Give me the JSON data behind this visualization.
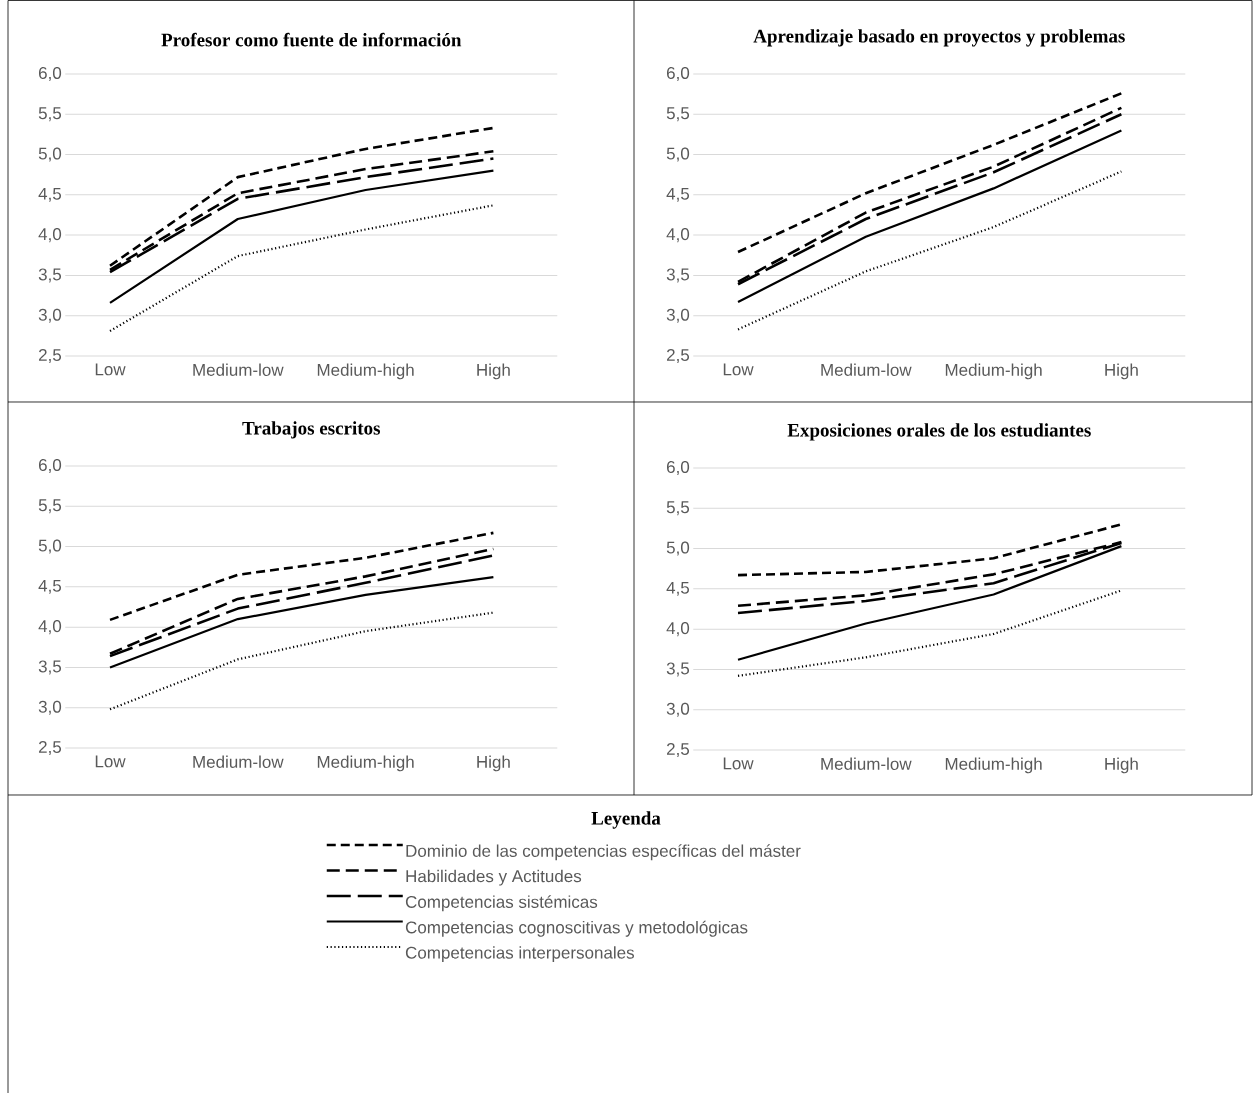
{
  "chart_data": [
    {
      "type": "line",
      "title": "Profesor como fuente de información",
      "categories": [
        "Low",
        "Medium-low",
        "Medium-high",
        "High"
      ],
      "ylim": [
        2.5,
        6.0
      ],
      "yticks": [
        {
          "value": 2.5,
          "label": "2,5"
        },
        {
          "value": 3.0,
          "label": "3,0"
        },
        {
          "value": 3.5,
          "label": "3,5"
        },
        {
          "value": 4.0,
          "label": "4,0"
        },
        {
          "value": 4.5,
          "label": "4,5"
        },
        {
          "value": 5.0,
          "label": "5,0"
        },
        {
          "value": 5.5,
          "label": "5,5"
        },
        {
          "value": 6.0,
          "label": "6,0"
        }
      ],
      "grid": "y",
      "series": [
        {
          "color": "#000000",
          "line_style": "dashed",
          "values": [
            3.62,
            4.72,
            5.07,
            5.33
          ]
        },
        {
          "color": "#000000",
          "line_style": "dashed",
          "values": [
            3.57,
            4.52,
            4.82,
            5.04
          ]
        },
        {
          "color": "#000000",
          "line_style": "dashed",
          "values": [
            3.54,
            4.45,
            4.72,
            4.95
          ]
        },
        {
          "color": "#000000",
          "line_style": "solid",
          "values": [
            3.16,
            4.2,
            4.56,
            4.8
          ]
        },
        {
          "color": "#000000",
          "line_style": "dotted",
          "values": [
            2.81,
            3.74,
            4.07,
            4.37
          ]
        }
      ]
    },
    {
      "type": "line",
      "title": "Aprendizaje basado en proyectos y problemas",
      "categories": [
        "Low",
        "Medium-low",
        "Medium-high",
        "High"
      ],
      "ylim": [
        2.5,
        6.0
      ],
      "yticks": [
        {
          "value": 2.5,
          "label": "2,5"
        },
        {
          "value": 3.0,
          "label": "3,0"
        },
        {
          "value": 3.5,
          "label": "3,5"
        },
        {
          "value": 4.0,
          "label": "4,0"
        },
        {
          "value": 4.5,
          "label": "4,5"
        },
        {
          "value": 5.0,
          "label": "5,0"
        },
        {
          "value": 5.5,
          "label": "5,5"
        },
        {
          "value": 6.0,
          "label": "6,0"
        }
      ],
      "grid": "y",
      "series": [
        {
          "color": "#000000",
          "line_style": "dashed",
          "values": [
            3.79,
            4.52,
            5.12,
            5.76
          ]
        },
        {
          "color": "#000000",
          "line_style": "dashed",
          "values": [
            3.42,
            4.28,
            4.85,
            5.58
          ]
        },
        {
          "color": "#000000",
          "line_style": "dashed",
          "values": [
            3.39,
            4.2,
            4.78,
            5.5
          ]
        },
        {
          "color": "#000000",
          "line_style": "solid",
          "values": [
            3.17,
            3.98,
            4.58,
            5.3
          ]
        },
        {
          "color": "#000000",
          "line_style": "dotted",
          "values": [
            2.83,
            3.55,
            4.1,
            4.79
          ]
        }
      ]
    },
    {
      "type": "line",
      "title": "Trabajos escritos",
      "categories": [
        "Low",
        "Medium-low",
        "Medium-high",
        "High"
      ],
      "ylim": [
        2.5,
        6.0
      ],
      "yticks": [
        {
          "value": 2.5,
          "label": "2,5"
        },
        {
          "value": 3.0,
          "label": "3,0"
        },
        {
          "value": 3.5,
          "label": "3,5"
        },
        {
          "value": 4.0,
          "label": "4,0"
        },
        {
          "value": 4.5,
          "label": "4,5"
        },
        {
          "value": 5.0,
          "label": "5,0"
        },
        {
          "value": 5.5,
          "label": "5,5"
        },
        {
          "value": 6.0,
          "label": "6,0"
        }
      ],
      "grid": "y",
      "series": [
        {
          "color": "#000000",
          "line_style": "dashed",
          "values": [
            4.09,
            4.65,
            4.86,
            5.17
          ]
        },
        {
          "color": "#000000",
          "line_style": "dashed",
          "values": [
            3.67,
            4.35,
            4.63,
            4.97
          ]
        },
        {
          "color": "#000000",
          "line_style": "dashed",
          "values": [
            3.64,
            4.23,
            4.55,
            4.89
          ]
        },
        {
          "color": "#000000",
          "line_style": "solid",
          "values": [
            3.5,
            4.1,
            4.4,
            4.62
          ]
        },
        {
          "color": "#000000",
          "line_style": "dotted",
          "values": [
            2.98,
            3.6,
            3.95,
            4.18
          ]
        }
      ]
    },
    {
      "type": "line",
      "title": "Exposiciones orales de los estudiantes",
      "categories": [
        "Low",
        "Medium-low",
        "Medium-high",
        "High"
      ],
      "ylim": [
        2.5,
        6.0
      ],
      "yticks": [
        {
          "value": 2.5,
          "label": "2,5"
        },
        {
          "value": 3.0,
          "label": "3,0"
        },
        {
          "value": 3.5,
          "label": "3,5"
        },
        {
          "value": 4.0,
          "label": "4,0"
        },
        {
          "value": 4.5,
          "label": "4,5"
        },
        {
          "value": 5.0,
          "label": "5,0"
        },
        {
          "value": 5.5,
          "label": "5,5"
        },
        {
          "value": 6.0,
          "label": "6,0"
        }
      ],
      "grid": "y",
      "legend": "bottom",
      "legend_title": "Leyenda",
      "series": [
        {
          "name": "Dominio de las competencias específicas del máster",
          "color": "#000000",
          "line_style": "dashed",
          "values": [
            4.67,
            4.71,
            4.88,
            5.3
          ]
        },
        {
          "name": "Habilidades y Actitudes",
          "color": "#000000",
          "line_style": "dashed",
          "values": [
            4.29,
            4.42,
            4.68,
            5.08
          ]
        },
        {
          "name": "Competencias sistémicas",
          "color": "#000000",
          "line_style": "dashed",
          "values": [
            4.2,
            4.35,
            4.57,
            5.07
          ]
        },
        {
          "name": "Competencias cognoscitivas y metodológicas",
          "color": "#000000",
          "line_style": "solid",
          "values": [
            3.62,
            4.07,
            4.43,
            5.03
          ]
        },
        {
          "name": "Competencias interpersonales",
          "color": "#000000",
          "line_style": "dotted",
          "values": [
            3.42,
            3.65,
            3.94,
            4.48
          ]
        }
      ]
    }
  ]
}
